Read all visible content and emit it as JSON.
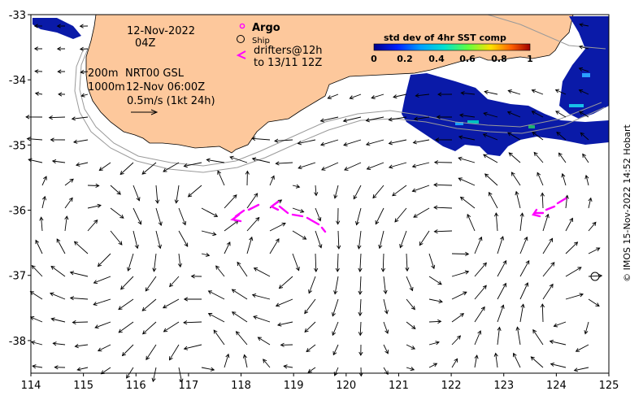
{
  "map": {
    "x_ticks": [
      "114",
      "115",
      "116",
      "117",
      "118",
      "119",
      "120",
      "121",
      "122",
      "123",
      "124",
      "125"
    ],
    "y_ticks": [
      "-33",
      "-34",
      "-35",
      "-36",
      "-37",
      "-38"
    ],
    "x_range": [
      114,
      125
    ],
    "y_range": [
      -38.5,
      -33
    ]
  },
  "annotations": {
    "date": "12-Nov-2022",
    "time": "04Z",
    "depth_200": "200m",
    "depth_1000": "1000m",
    "product": "NRT00 GSL",
    "product_time": "12-Nov 06:00Z",
    "scale_note": "0.5m/s (1kt 24h)"
  },
  "legend": {
    "argo_label": "Argo",
    "ship_label": "Ship",
    "drifters_label": "drifters@12h",
    "drifters_to": "to 13/11 12Z"
  },
  "colorbar": {
    "title": "std dev of 4hr SST comp",
    "ticks": [
      "0",
      "0.2",
      "0.4",
      "0.6",
      "0.8",
      "1"
    ]
  },
  "credit": "© IMOS 15-Nov-2022 14:52 Hobart",
  "colors": {
    "land": "#fdc89c",
    "sst_low": "#0a1aa8",
    "drifter": "#ff00ff",
    "contour": "#9a9a9a"
  }
}
